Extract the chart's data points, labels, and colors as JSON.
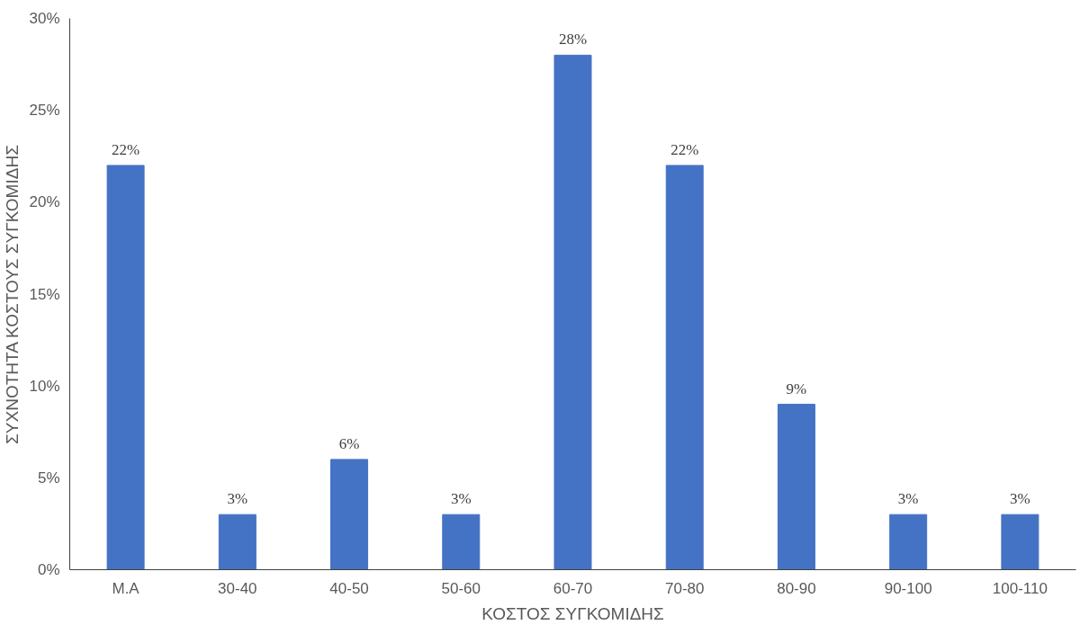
{
  "chart_data": {
    "type": "bar",
    "xlabel": "ΚΟΣΤΟΣ ΣΥΓΚΟΜΙΔΗΣ",
    "ylabel": "ΣΥΧΝΟΤΗΤΑ ΚΟΣΤΟΥΣ ΣΥΓΚΟΜΙΔΗΣ",
    "categories": [
      "Μ.Α",
      "30-40",
      "40-50",
      "50-60",
      "60-70",
      "70-80",
      "80-90",
      "90-100",
      "100-110"
    ],
    "values": [
      22,
      3,
      6,
      3,
      28,
      22,
      9,
      3,
      3
    ],
    "value_labels": [
      "22%",
      "3%",
      "6%",
      "3%",
      "28%",
      "22%",
      "9%",
      "3%",
      "3%"
    ],
    "color": "#4472c4",
    "ylim": [
      0,
      30
    ],
    "yticks": [
      {
        "value": 0,
        "label": "0%"
      },
      {
        "value": 5,
        "label": "5%"
      },
      {
        "value": 10,
        "label": "10%"
      },
      {
        "value": 15,
        "label": "15%"
      },
      {
        "value": 20,
        "label": "20%"
      },
      {
        "value": 25,
        "label": "25%"
      },
      {
        "value": 30,
        "label": "30%"
      }
    ],
    "grid": false
  }
}
